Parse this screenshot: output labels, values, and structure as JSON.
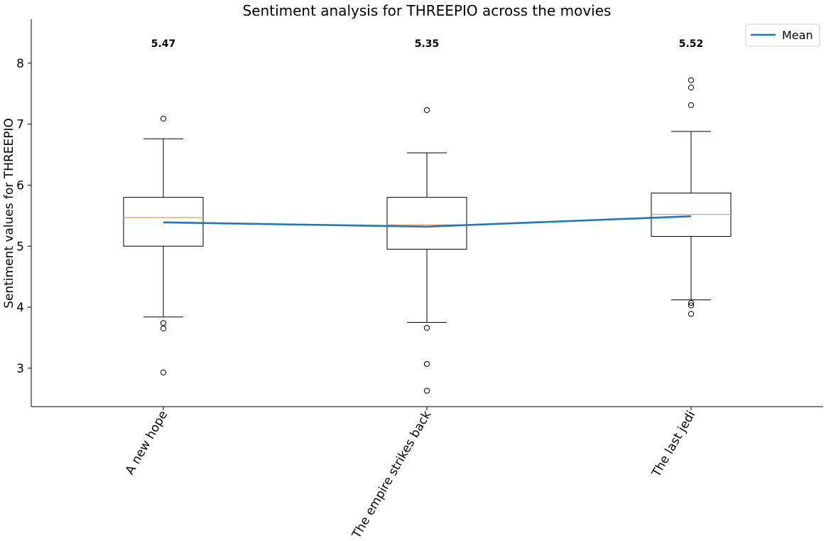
{
  "chart_data": {
    "type": "box",
    "title": "Sentiment analysis for THREEPIO across the movies",
    "xlabel": "",
    "ylabel": "Sentiment values for THREEPIO",
    "ylim": [
      2.37,
      8.72
    ],
    "yticks": [
      3,
      4,
      5,
      6,
      7,
      8
    ],
    "grid": false,
    "legend": {
      "position": "top-right",
      "entries": [
        "Mean"
      ]
    },
    "colors": {
      "box": "#000000",
      "median": "#f59d57",
      "mean_line": "#1f77b4"
    },
    "categories": [
      "A new hope",
      "The empire strikes back",
      "The last jedi"
    ],
    "boxes": [
      {
        "whisker_low": 3.84,
        "q1": 5.0,
        "median": 5.47,
        "q3": 5.8,
        "whisker_high": 6.76,
        "outliers": [
          7.09,
          3.74,
          3.65,
          2.93
        ]
      },
      {
        "whisker_low": 3.75,
        "q1": 4.95,
        "median": 5.35,
        "q3": 5.8,
        "whisker_high": 6.53,
        "outliers": [
          7.23,
          3.66,
          3.07,
          2.63
        ]
      },
      {
        "whisker_low": 4.12,
        "q1": 5.16,
        "median": 5.52,
        "q3": 5.87,
        "whisker_high": 6.88,
        "outliers": [
          7.72,
          7.6,
          7.31,
          4.07,
          4.03,
          3.89
        ]
      }
    ],
    "median_labels": [
      "5.47",
      "5.35",
      "5.52"
    ],
    "series": [
      {
        "name": "Mean",
        "values": [
          5.39,
          5.32,
          5.49
        ]
      }
    ]
  }
}
